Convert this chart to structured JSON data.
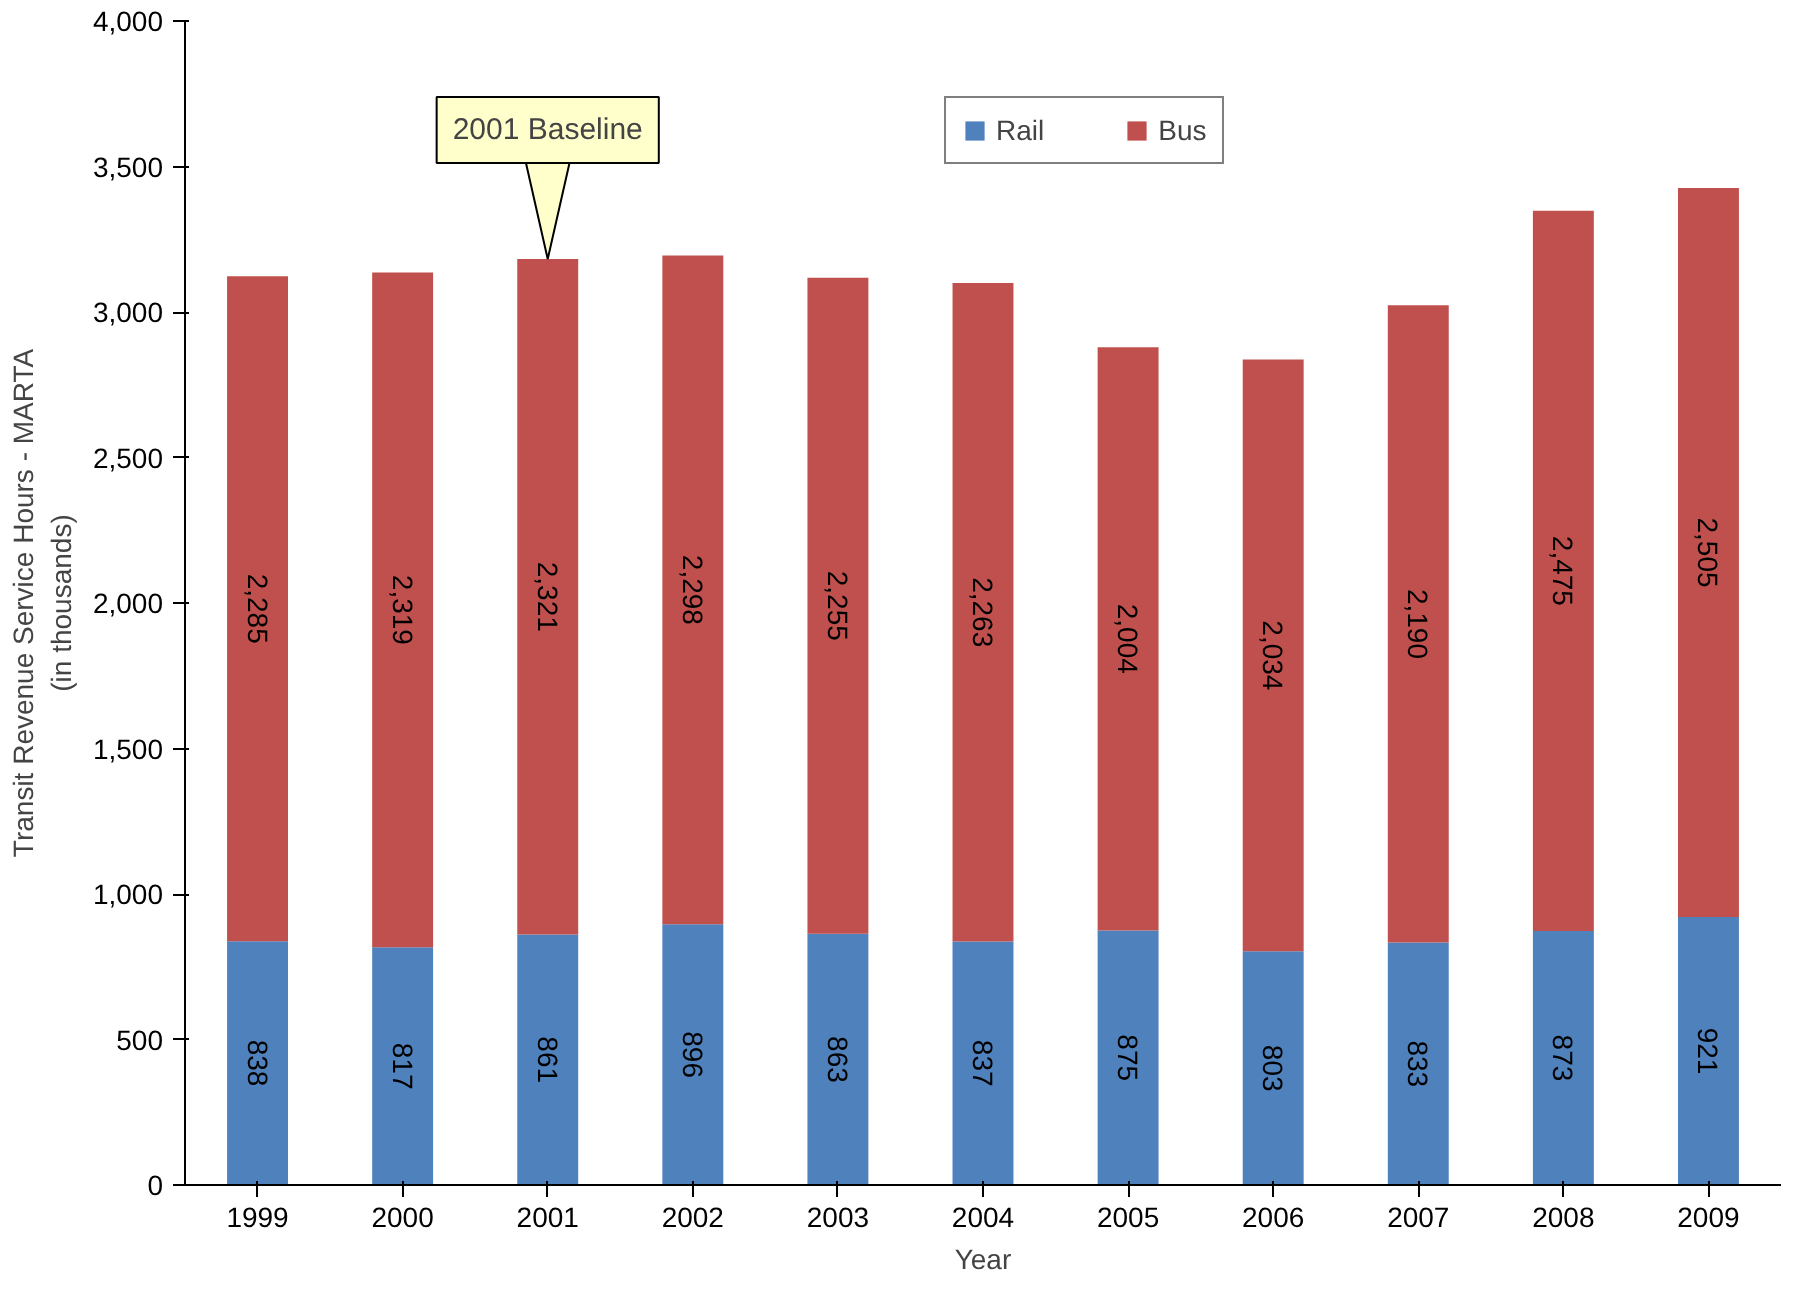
{
  "chart_data": {
    "type": "bar",
    "stacked": true,
    "xlabel": "Year",
    "ylabel": "Transit Revenue Service Hours - MARTA\n(in thousands)",
    "categories": [
      "1999",
      "2000",
      "2001",
      "2002",
      "2003",
      "2004",
      "2005",
      "2006",
      "2007",
      "2008",
      "2009"
    ],
    "series": [
      {
        "name": "Rail",
        "color": "#4f81bd",
        "values": [
          838,
          817,
          861,
          896,
          863,
          837,
          875,
          803,
          833,
          873,
          921
        ],
        "value_labels": [
          "838",
          "817",
          "861",
          "896",
          "863",
          "837",
          "875",
          "803",
          "833",
          "873",
          "921"
        ]
      },
      {
        "name": "Bus",
        "color": "#c0504d",
        "values": [
          2285,
          2319,
          2321,
          2298,
          2255,
          2263,
          2004,
          2034,
          2190,
          2475,
          2505
        ],
        "value_labels": [
          "2,285",
          "2,319",
          "2,321",
          "2,298",
          "2,255",
          "2,263",
          "2,004",
          "2,034",
          "2,190",
          "2,475",
          "2,505"
        ]
      }
    ],
    "ylim": [
      0,
      4000
    ],
    "yticks": [
      {
        "value": 0,
        "label": "0"
      },
      {
        "value": 500,
        "label": "500"
      },
      {
        "value": 1000,
        "label": "1,000"
      },
      {
        "value": 1500,
        "label": "1,500"
      },
      {
        "value": 2000,
        "label": "2,000"
      },
      {
        "value": 2500,
        "label": "2,500"
      },
      {
        "value": 3000,
        "label": "3,000"
      },
      {
        "value": 3500,
        "label": "3,500"
      },
      {
        "value": 4000,
        "label": "4,000"
      }
    ],
    "legend": "top right",
    "grid": false,
    "annotations": [
      {
        "text": "2001 Baseline",
        "x": "2001",
        "y": 3182
      }
    ]
  }
}
